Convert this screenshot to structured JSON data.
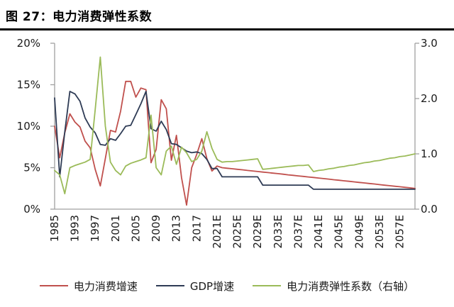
{
  "page": {
    "title": "图 27：电力消费弹性系数"
  },
  "legend": {
    "items": [
      {
        "label": "电力消费增速"
      },
      {
        "label": "GDP增速"
      },
      {
        "label": "电力消费弹性系数（右轴）"
      }
    ]
  },
  "chart_data": {
    "type": "line",
    "title": "图 27：电力消费弹性系数",
    "grid": false,
    "legend_position": "bottom",
    "x_categories": [
      1985,
      1990,
      1991,
      1992,
      1993,
      1994,
      1995,
      1996,
      1997,
      1998,
      1999,
      2000,
      2001,
      2002,
      2003,
      2004,
      2005,
      2006,
      2007,
      2008,
      2009,
      2010,
      2011,
      2012,
      2013,
      2014,
      2015,
      2016,
      2017,
      2018,
      2019,
      2020,
      2021,
      2022,
      2023,
      2024,
      2025,
      2026,
      2027,
      2028,
      2029,
      2030,
      2031,
      2032,
      2033,
      2034,
      2035,
      2036,
      2037,
      2038,
      2039,
      2040,
      2041,
      2042,
      2043,
      2044,
      2045,
      2046,
      2047,
      2048,
      2049,
      2050,
      2051,
      2052,
      2053,
      2054,
      2055,
      2056,
      2057,
      2058,
      2059,
      2060
    ],
    "axes": {
      "left": {
        "min": 0,
        "max": 20,
        "ticks": [
          {
            "v": 0,
            "label": "0%"
          },
          {
            "v": 5,
            "label": "5%"
          },
          {
            "v": 10,
            "label": "10%"
          },
          {
            "v": 15,
            "label": "15%"
          },
          {
            "v": 20,
            "label": "20%"
          }
        ]
      },
      "right": {
        "min": 0,
        "max": 3,
        "ticks": [
          {
            "v": 0,
            "label": "0.0"
          },
          {
            "v": 1,
            "label": "1.0"
          },
          {
            "v": 2,
            "label": "2.0"
          },
          {
            "v": 3,
            "label": "3.0"
          }
        ]
      },
      "x": {
        "tick_indices": [
          0,
          4,
          8,
          12,
          16,
          20,
          24,
          28,
          32,
          36,
          40,
          44,
          48,
          52,
          56,
          60,
          64,
          68
        ],
        "tick_labels": [
          "1985",
          "1993",
          "1997",
          "2001",
          "2005",
          "2009",
          "2013",
          "2017",
          "2021E",
          "2025E",
          "2029E",
          "2033E",
          "2037E",
          "2041E",
          "2045E",
          "2049E",
          "2053E",
          "2057E"
        ]
      }
    },
    "series": [
      {
        "name": "电力消费增速",
        "axis": "left",
        "color": "#c0504d",
        "values": [
          10.0,
          6.2,
          9.2,
          11.5,
          10.5,
          9.9,
          8.2,
          7.4,
          4.8,
          2.8,
          6.1,
          9.5,
          9.3,
          11.8,
          15.4,
          15.4,
          13.5,
          14.6,
          14.4,
          5.6,
          7.2,
          13.2,
          12.1,
          5.9,
          8.9,
          3.8,
          0.5,
          5.0,
          6.6,
          8.5,
          6.1,
          4.6,
          5.2,
          5.0,
          4.93,
          4.87,
          4.8,
          4.74,
          4.67,
          4.61,
          4.54,
          4.47,
          4.41,
          4.34,
          4.28,
          4.21,
          4.14,
          4.08,
          4.01,
          3.95,
          3.88,
          3.82,
          3.75,
          3.68,
          3.62,
          3.55,
          3.49,
          3.42,
          3.36,
          3.29,
          3.22,
          3.16,
          3.09,
          3.03,
          2.96,
          2.89,
          2.83,
          2.76,
          2.7,
          2.63,
          2.57,
          2.5
        ]
      },
      {
        "name": "GDP增速",
        "axis": "left",
        "color": "#2e3b55",
        "values": [
          13.4,
          3.9,
          9.3,
          14.2,
          13.9,
          13.0,
          11.0,
          9.9,
          9.2,
          7.8,
          7.7,
          8.5,
          8.3,
          9.1,
          10.0,
          10.1,
          11.4,
          12.7,
          14.2,
          9.7,
          9.4,
          10.6,
          9.6,
          7.9,
          7.8,
          7.4,
          7.0,
          6.8,
          6.9,
          6.7,
          6.0,
          4.9,
          4.9,
          3.9,
          3.9,
          3.9,
          3.9,
          3.9,
          3.9,
          3.9,
          3.9,
          2.9,
          2.9,
          2.9,
          2.9,
          2.9,
          2.9,
          2.9,
          2.9,
          2.9,
          2.9,
          2.4,
          2.4,
          2.4,
          2.4,
          2.4,
          2.4,
          2.4,
          2.4,
          2.4,
          2.4,
          2.4,
          2.4,
          2.4,
          2.4,
          2.4,
          2.4,
          2.4,
          2.4,
          2.4,
          2.4,
          2.4
        ]
      },
      {
        "name": "电力消费弹性系数（右轴）",
        "axis": "right",
        "color": "#9bbb59",
        "values": [
          0.7,
          0.62,
          0.28,
          0.75,
          0.79,
          0.82,
          0.85,
          0.9,
          1.8,
          2.75,
          1.5,
          0.85,
          0.7,
          0.62,
          0.78,
          0.83,
          0.86,
          0.89,
          0.93,
          1.7,
          0.75,
          0.62,
          1.05,
          1.14,
          0.81,
          1.12,
          1.02,
          0.86,
          0.9,
          1.05,
          1.4,
          1.1,
          0.9,
          0.85,
          0.86,
          0.86,
          0.87,
          0.88,
          0.89,
          0.9,
          0.91,
          0.72,
          0.73,
          0.74,
          0.75,
          0.76,
          0.77,
          0.78,
          0.79,
          0.79,
          0.8,
          0.68,
          0.7,
          0.71,
          0.73,
          0.74,
          0.76,
          0.77,
          0.79,
          0.8,
          0.82,
          0.84,
          0.85,
          0.87,
          0.88,
          0.9,
          0.92,
          0.93,
          0.95,
          0.96,
          0.98,
          1.0
        ]
      }
    ],
    "style": {
      "axis_line_color": "#a0a0a0",
      "tick_text_color": "#1a1a1a",
      "line_width": 1.8
    }
  }
}
